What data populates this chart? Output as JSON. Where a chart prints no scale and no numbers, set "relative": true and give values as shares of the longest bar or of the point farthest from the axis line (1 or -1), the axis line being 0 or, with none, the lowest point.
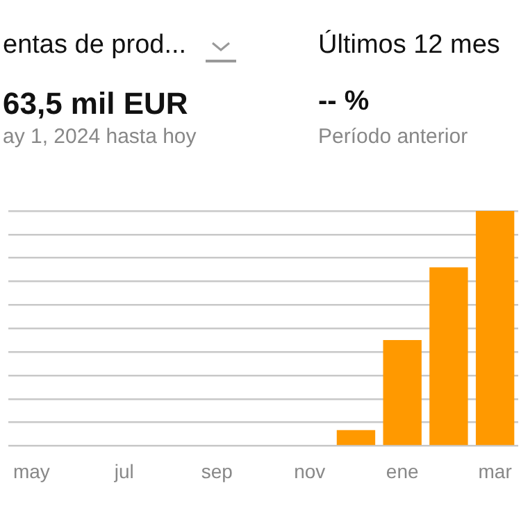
{
  "chart_data": {
    "type": "bar",
    "title": "entas de prod...",
    "annotations": [
      "Últimos 12 mes",
      "63,5 mil EUR",
      "-- %",
      "ay 1, 2024 hasta hoy",
      "Período anterior"
    ],
    "categories": [
      "may",
      null,
      "jul",
      null,
      "sep",
      null,
      "nov",
      null,
      "ene",
      null,
      "mar"
    ],
    "values": [
      0,
      0,
      0,
      0,
      0,
      0,
      0,
      0.067,
      0.45,
      0.76,
      1
    ],
    "color": "#ff9900",
    "relative": true,
    "grid": "y"
  }
}
